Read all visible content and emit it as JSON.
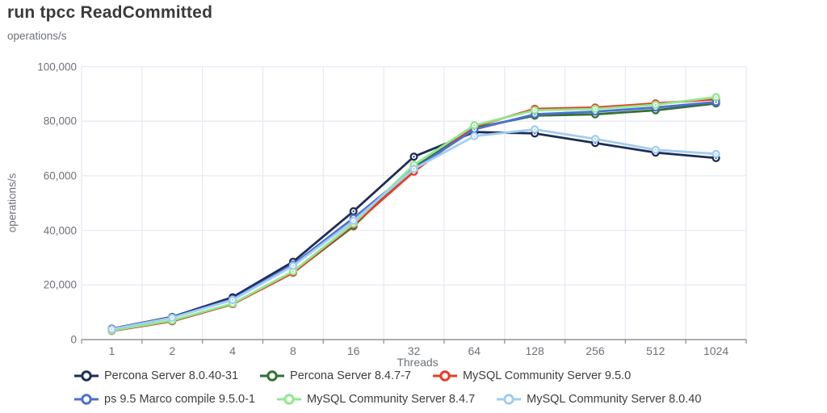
{
  "title": "run tpcc ReadCommitted",
  "unit_label_top": "operations/s",
  "unit_label_side": "operations/s",
  "chart_data": {
    "type": "line",
    "title": "run tpcc ReadCommitted",
    "xlabel": "Threads",
    "ylabel": "operations/s",
    "x_scale": "categorical (powers of 2)",
    "categories": [
      "1",
      "2",
      "4",
      "8",
      "16",
      "32",
      "64",
      "128",
      "256",
      "512",
      "1024"
    ],
    "ylim": [
      0,
      100000
    ],
    "y_ticks": [
      0,
      20000,
      40000,
      60000,
      80000,
      100000
    ],
    "y_tick_labels": [
      "0",
      "20,000",
      "40,000",
      "60,000",
      "80,000",
      "100,000"
    ],
    "grid": true,
    "legend_position": "bottom",
    "marker": "open-circle",
    "series": [
      {
        "name": "Percona Server 8.0.40-31",
        "color": "#1e2d56",
        "values": [
          4000,
          8300,
          15500,
          28500,
          47000,
          67000,
          76000,
          75500,
          72000,
          68500,
          66500
        ]
      },
      {
        "name": "Percona Server 8.4.7-7",
        "color": "#337033",
        "values": [
          3200,
          6700,
          13000,
          24500,
          41500,
          63000,
          77500,
          82000,
          82500,
          84000,
          86500
        ]
      },
      {
        "name": "MySQL Community Server 9.5.0",
        "color": "#e83c24",
        "values": [
          3200,
          6800,
          13000,
          24500,
          42000,
          61500,
          78000,
          84500,
          85000,
          86500,
          88000
        ]
      },
      {
        "name": "ps 9.5 Marco compile 9.5.0-1",
        "color": "#4d6fd6",
        "values": [
          3900,
          8100,
          14800,
          27500,
          44500,
          62500,
          77000,
          82500,
          83500,
          85000,
          87000
        ]
      },
      {
        "name": "MySQL Community Server 8.4.7",
        "color": "#8fe88f",
        "values": [
          3300,
          7000,
          13200,
          25000,
          42500,
          64000,
          78500,
          84000,
          84500,
          86000,
          88800
        ]
      },
      {
        "name": "MySQL Community Server 8.0.40",
        "color": "#a2cdf2",
        "values": [
          3800,
          8000,
          14500,
          27000,
          43500,
          62500,
          74500,
          77000,
          73500,
          69500,
          68000
        ]
      }
    ]
  },
  "style_colors": {
    "grid": "#e6eaf3",
    "axis": "#8f9399",
    "tick_text": "#6d7279",
    "title_text": "#3a3a3a",
    "legend_text": "#3e3e3e"
  }
}
